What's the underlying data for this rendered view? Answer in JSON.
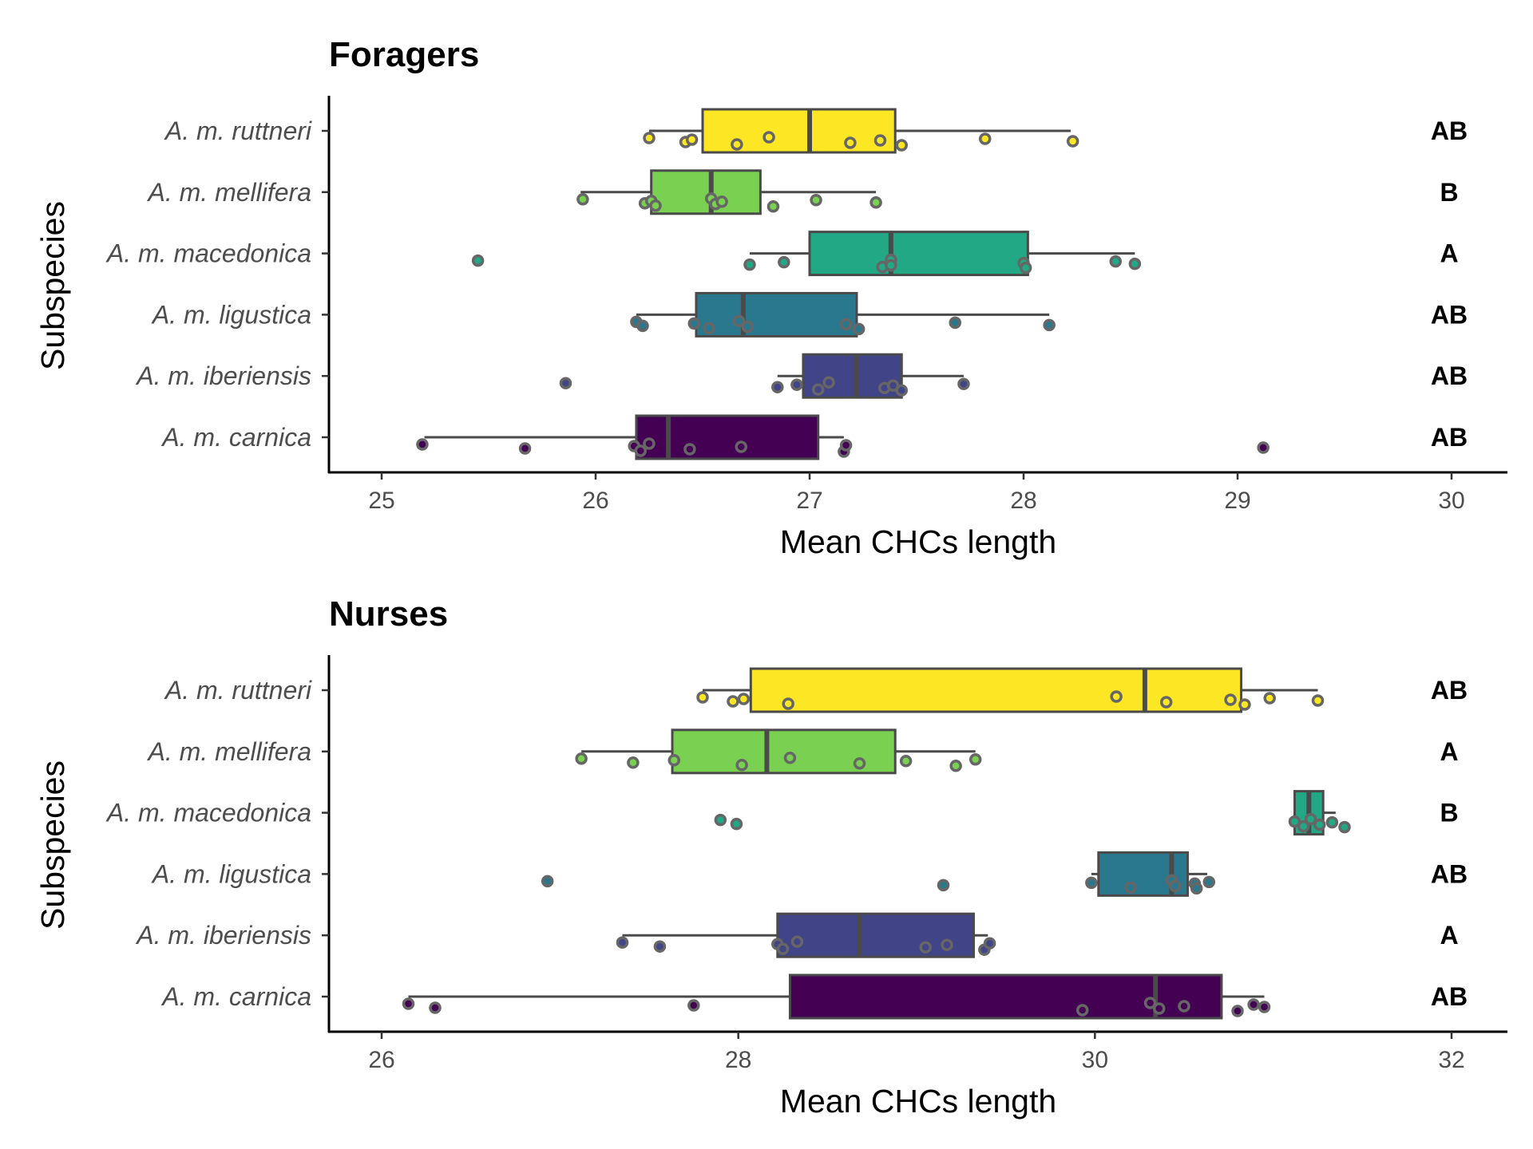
{
  "chart_data": [
    {
      "type": "boxplot",
      "title": "Foragers",
      "xlabel": "Mean CHCs length",
      "ylabel": "Subspecies",
      "xlim": [
        25,
        30
      ],
      "xticks": [
        25,
        26,
        27,
        28,
        29,
        30
      ],
      "grid": false,
      "legend": "none",
      "groups": [
        {
          "name": "A. m. ruttneri",
          "color": "#fde725",
          "letter": "AB",
          "whisker_low": 26.25,
          "q1": 26.5,
          "median": 27.0,
          "q3": 27.4,
          "whisker_high": 28.22,
          "points": [
            26.25,
            26.42,
            26.45,
            26.66,
            26.81,
            27.19,
            27.33,
            27.43,
            27.82,
            28.23
          ]
        },
        {
          "name": "A. m. mellifera",
          "color": "#7ad151",
          "letter": "B",
          "whisker_low": 25.93,
          "q1": 26.26,
          "median": 26.54,
          "q3": 26.77,
          "whisker_high": 27.31,
          "points": [
            25.94,
            26.23,
            26.26,
            26.28,
            26.54,
            26.56,
            26.59,
            26.83,
            27.03,
            27.31
          ]
        },
        {
          "name": "A. m. macedonica",
          "color": "#22a884",
          "letter": "A",
          "whisker_low": 26.72,
          "q1": 27.0,
          "median": 27.38,
          "q3": 28.02,
          "whisker_high": 28.52,
          "points": [
            25.45,
            26.72,
            26.88,
            27.34,
            27.38,
            27.38,
            28.0,
            28.01,
            28.43,
            28.52
          ]
        },
        {
          "name": "A. m. ligustica",
          "color": "#2a788e",
          "letter": "AB",
          "whisker_low": 26.19,
          "q1": 26.47,
          "median": 26.69,
          "q3": 27.22,
          "whisker_high": 28.12,
          "points": [
            26.19,
            26.22,
            26.46,
            26.53,
            26.67,
            26.71,
            27.17,
            27.23,
            27.68,
            28.12
          ]
        },
        {
          "name": "A. m. iberiensis",
          "color": "#414487",
          "letter": "AB",
          "whisker_low": 26.85,
          "q1": 26.97,
          "median": 27.22,
          "q3": 27.43,
          "whisker_high": 27.72,
          "points": [
            25.86,
            26.85,
            26.94,
            27.04,
            27.09,
            27.35,
            27.39,
            27.43,
            27.72
          ]
        },
        {
          "name": "A. m. carnica",
          "color": "#440154",
          "letter": "AB",
          "whisker_low": 25.2,
          "q1": 26.19,
          "median": 26.34,
          "q3": 27.04,
          "whisker_high": 27.16,
          "points": [
            25.19,
            25.67,
            26.18,
            26.21,
            26.25,
            26.44,
            26.68,
            27.16,
            27.17,
            29.12
          ]
        }
      ]
    },
    {
      "type": "boxplot",
      "title": "Nurses",
      "xlabel": "Mean CHCs length",
      "ylabel": "Subspecies",
      "xlim": [
        26,
        32
      ],
      "xticks": [
        26,
        28,
        30,
        32
      ],
      "grid": false,
      "legend": "none",
      "groups": [
        {
          "name": "A. m. ruttneri",
          "color": "#fde725",
          "letter": "AB",
          "whisker_low": 27.8,
          "q1": 28.07,
          "median": 30.28,
          "q3": 30.82,
          "whisker_high": 31.25,
          "points": [
            27.8,
            27.97,
            28.03,
            28.28,
            30.12,
            30.4,
            30.76,
            30.84,
            30.98,
            31.25
          ]
        },
        {
          "name": "A. m. mellifera",
          "color": "#7ad151",
          "letter": "A",
          "whisker_low": 27.12,
          "q1": 27.63,
          "median": 28.16,
          "q3": 28.88,
          "whisker_high": 29.33,
          "points": [
            27.12,
            27.41,
            27.64,
            28.02,
            28.29,
            28.68,
            28.94,
            29.22,
            29.33
          ]
        },
        {
          "name": "A. m. macedonica",
          "color": "#22a884",
          "letter": "B",
          "whisker_low": 31.12,
          "q1": 31.12,
          "median": 31.2,
          "q3": 31.28,
          "whisker_high": 31.35,
          "points": [
            27.9,
            27.99,
            31.12,
            31.17,
            31.21,
            31.26,
            31.33,
            31.4
          ]
        },
        {
          "name": "A. m. ligustica",
          "color": "#2a788e",
          "letter": "AB",
          "whisker_low": 29.98,
          "q1": 30.02,
          "median": 30.43,
          "q3": 30.52,
          "whisker_high": 30.63,
          "points": [
            26.93,
            29.15,
            29.98,
            30.2,
            30.43,
            30.45,
            30.56,
            30.57,
            30.64
          ]
        },
        {
          "name": "A. m. iberiensis",
          "color": "#414487",
          "letter": "A",
          "whisker_low": 27.35,
          "q1": 28.22,
          "median": 28.68,
          "q3": 29.32,
          "whisker_high": 29.4,
          "points": [
            27.35,
            27.56,
            28.22,
            28.25,
            28.33,
            29.05,
            29.17,
            29.38,
            29.41
          ]
        },
        {
          "name": "A. m. carnica",
          "color": "#440154",
          "letter": "AB",
          "whisker_low": 26.15,
          "q1": 28.29,
          "median": 30.34,
          "q3": 30.71,
          "whisker_high": 30.95,
          "points": [
            26.15,
            26.3,
            27.75,
            29.93,
            30.31,
            30.36,
            30.5,
            30.8,
            30.89,
            30.95
          ]
        }
      ]
    }
  ]
}
